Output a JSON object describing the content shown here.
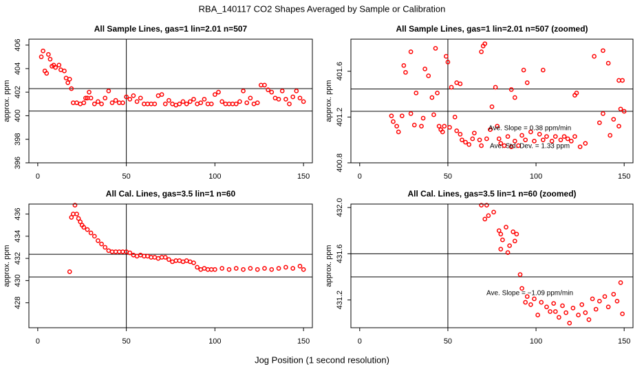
{
  "title": "RBA_140117  CO2 Shapes Averaged by Sample or Calibration",
  "xlabel": "Jog Position (1 second resolution)",
  "chart_data": [
    {
      "type": "scatter",
      "title": "All Sample Lines, gas=1 lin=2.01 n=507",
      "ylabel": "approx. ppm",
      "color": "#ff0000",
      "x": [
        2,
        3,
        4,
        5,
        6,
        7,
        8,
        9,
        10,
        12,
        13,
        15,
        16,
        17,
        18,
        19,
        20,
        22,
        24,
        26,
        27,
        28,
        29,
        30,
        32,
        34,
        36,
        38,
        40,
        42,
        44,
        46,
        48,
        50,
        52,
        54,
        56,
        58,
        60,
        62,
        64,
        66,
        68,
        70,
        72,
        74,
        76,
        78,
        80,
        82,
        84,
        86,
        88,
        90,
        92,
        94,
        96,
        98,
        100,
        102,
        104,
        106,
        108,
        110,
        112,
        114,
        116,
        118,
        120,
        122,
        124,
        126,
        128,
        130,
        132,
        134,
        136,
        138,
        140,
        142,
        144,
        146,
        148,
        150
      ],
      "values": [
        405,
        405.5,
        403.8,
        403.6,
        405.2,
        404.8,
        404.2,
        404.3,
        404.1,
        404.3,
        403.9,
        403.8,
        403.2,
        402.8,
        403.1,
        402.3,
        401.1,
        401.1,
        401.0,
        401.1,
        401.5,
        401.5,
        402.0,
        401.5,
        401.0,
        401.2,
        401.0,
        401.5,
        402.1,
        401.1,
        401.3,
        401.1,
        401.1,
        401.6,
        401.4,
        401.7,
        401.2,
        401.5,
        401.0,
        401.0,
        401.0,
        401.0,
        401.7,
        401.8,
        401.0,
        401.3,
        401.0,
        400.9,
        401.0,
        401.2,
        401.0,
        401.2,
        401.4,
        401.0,
        401.1,
        401.4,
        401.0,
        401.0,
        401.8,
        402.0,
        401.2,
        401.0,
        401.0,
        401.0,
        401.0,
        401.2,
        402.1,
        401.1,
        401.5,
        401.0,
        401.1,
        402.6,
        402.6,
        402.2,
        402.0,
        401.5,
        401.4,
        402.1,
        401.4,
        401.0,
        401.6,
        402.1,
        401.5,
        401.2
      ],
      "xlim": [
        -5,
        155
      ],
      "ylim": [
        396,
        406.5
      ],
      "xticks": [
        0,
        50,
        100,
        150
      ],
      "yticks": [
        396,
        398,
        400,
        402,
        404,
        406
      ],
      "hlines": [
        402.3,
        400.4
      ],
      "vlines": [
        50
      ]
    },
    {
      "type": "scatter",
      "title": "All Sample Lines, gas=1 lin=2.01 n=507 (zoomed)",
      "ylabel": "approx. ppm",
      "color": "#ff0000",
      "x": [
        25,
        29,
        26,
        32,
        37,
        39,
        41,
        43,
        44,
        49,
        50,
        52,
        55,
        57,
        69,
        70,
        71,
        77,
        86,
        88,
        93,
        95,
        104,
        122,
        123,
        133,
        138,
        141,
        147,
        149,
        150,
        18,
        19,
        21,
        22,
        24,
        29,
        31,
        35,
        36,
        42,
        45,
        46,
        47,
        48,
        51,
        54,
        55,
        57,
        58,
        60,
        62,
        64,
        65,
        68,
        69,
        72,
        74,
        75,
        78,
        79,
        80,
        82,
        84,
        86,
        88,
        90,
        92,
        94,
        97,
        99,
        102,
        104,
        106,
        109,
        111,
        114,
        116,
        118,
        120,
        122,
        125,
        128,
        136,
        138,
        142,
        144,
        147,
        148
      ],
      "values": [
        401.65,
        401.77,
        401.59,
        401.41,
        401.62,
        401.56,
        401.37,
        401.8,
        401.41,
        401.73,
        401.68,
        401.46,
        401.5,
        401.49,
        401.77,
        401.82,
        401.84,
        401.46,
        401.44,
        401.37,
        401.61,
        401.5,
        401.61,
        401.39,
        401.41,
        401.73,
        401.78,
        401.67,
        401.52,
        401.52,
        401.25,
        401.21,
        401.16,
        401.12,
        401.07,
        401.21,
        401.23,
        401.13,
        401.12,
        401.19,
        401.22,
        401.12,
        401.09,
        401.07,
        401.12,
        401.11,
        401.2,
        401.08,
        401.05,
        401.0,
        400.98,
        400.96,
        401.01,
        401.06,
        401.0,
        400.95,
        401.01,
        401.09,
        401.29,
        401.12,
        401.01,
        400.97,
        400.95,
        401.03,
        400.94,
        400.99,
        400.95,
        401.04,
        401.0,
        401.07,
        400.99,
        401.05,
        401.0,
        401.03,
        400.99,
        401.03,
        401.0,
        401.03,
        401.01,
        400.99,
        401.03,
        400.94,
        400.97,
        401.15,
        401.23,
        401.04,
        401.18,
        401.12,
        401.27
      ],
      "xlim": [
        -5,
        155
      ],
      "ylim": [
        400.8,
        401.88
      ],
      "xticks": [
        0,
        50,
        100,
        150
      ],
      "yticks": [
        400.8,
        401.2,
        401.6
      ],
      "hlines": [
        401.445,
        401.25
      ],
      "vlines": [
        50
      ],
      "annotations": [
        "Ave. Slope = 0.38 ppm/min",
        "Ave. Std. Dev. = 1.33 ppm"
      ]
    },
    {
      "type": "scatter",
      "title": "All Cal. Lines, gas=3.5 lin=1 n=60",
      "ylabel": "approx. ppm",
      "color": "#ff0000",
      "x": [
        18,
        19,
        20,
        21,
        22,
        23,
        24,
        25,
        26,
        28,
        30,
        32,
        34,
        36,
        38,
        40,
        42,
        44,
        46,
        48,
        50,
        52,
        54,
        56,
        58,
        60,
        62,
        64,
        66,
        68,
        70,
        72,
        74,
        76,
        78,
        80,
        82,
        84,
        86,
        88,
        90,
        92,
        94,
        96,
        98,
        100,
        104,
        108,
        112,
        116,
        120,
        124,
        128,
        132,
        136,
        140,
        144,
        148,
        150
      ],
      "values": [
        430.8,
        435.7,
        436.0,
        436.8,
        436.0,
        435.6,
        435.3,
        435.0,
        434.8,
        434.6,
        434.3,
        434.0,
        433.6,
        433.3,
        433.0,
        432.7,
        432.6,
        432.6,
        432.6,
        432.6,
        432.6,
        432.5,
        432.3,
        432.2,
        432.3,
        432.2,
        432.2,
        432.1,
        432.1,
        432.0,
        432.1,
        432.1,
        431.9,
        431.7,
        431.8,
        431.8,
        431.7,
        431.8,
        431.7,
        431.6,
        431.2,
        431.0,
        431.1,
        431.0,
        431.0,
        431.0,
        431.1,
        431.0,
        431.1,
        431.0,
        431.1,
        431.0,
        431.1,
        431.0,
        431.1,
        431.2,
        431.1,
        431.3,
        431.0
      ],
      "xlim": [
        -5,
        155
      ],
      "ylim": [
        425.75,
        436.9
      ],
      "xticks": [
        0,
        50,
        100,
        150
      ],
      "yticks": [
        428,
        430,
        432,
        434,
        436
      ],
      "hlines": [
        432.37,
        430.33
      ],
      "vlines": [
        50
      ]
    },
    {
      "type": "scatter",
      "title": "All Cal. Lines, gas=3.5 lin=1 n=60 (zoomed)",
      "ylabel": "approx. ppm",
      "color": "#ff0000",
      "x": [
        69,
        72,
        73,
        71,
        76,
        79,
        80,
        81,
        83,
        85,
        87,
        89,
        80,
        84,
        88,
        91,
        92,
        94,
        95,
        97,
        99,
        101,
        103,
        106,
        108,
        110,
        111,
        113,
        115,
        117,
        119,
        121,
        124,
        126,
        128,
        130,
        132,
        134,
        136,
        139,
        141,
        144,
        146,
        148,
        149
      ],
      "values": [
        432.02,
        432.02,
        431.93,
        431.9,
        431.96,
        431.8,
        431.77,
        431.72,
        431.83,
        431.67,
        431.79,
        431.77,
        431.64,
        431.61,
        431.71,
        431.42,
        431.3,
        431.18,
        431.23,
        431.16,
        431.21,
        431.07,
        431.18,
        431.14,
        431.1,
        431.17,
        431.1,
        431.05,
        431.15,
        431.09,
        431.0,
        431.13,
        431.07,
        431.16,
        431.09,
        431.03,
        431.21,
        431.12,
        431.19,
        431.23,
        431.14,
        431.25,
        431.19,
        431.35,
        431.08
      ],
      "xlim": [
        -5,
        155
      ],
      "ylim": [
        430.96,
        432.03
      ],
      "xticks": [
        0,
        50,
        100,
        150
      ],
      "yticks": [
        431.2,
        431.6,
        {
          "value": 432,
          "label": "432.0"
        }
      ],
      "hlines": [
        431.6,
        431.4
      ],
      "vlines": [
        50
      ],
      "annotations": [
        "Ave. Slope = −1.09 ppm/min"
      ]
    }
  ]
}
